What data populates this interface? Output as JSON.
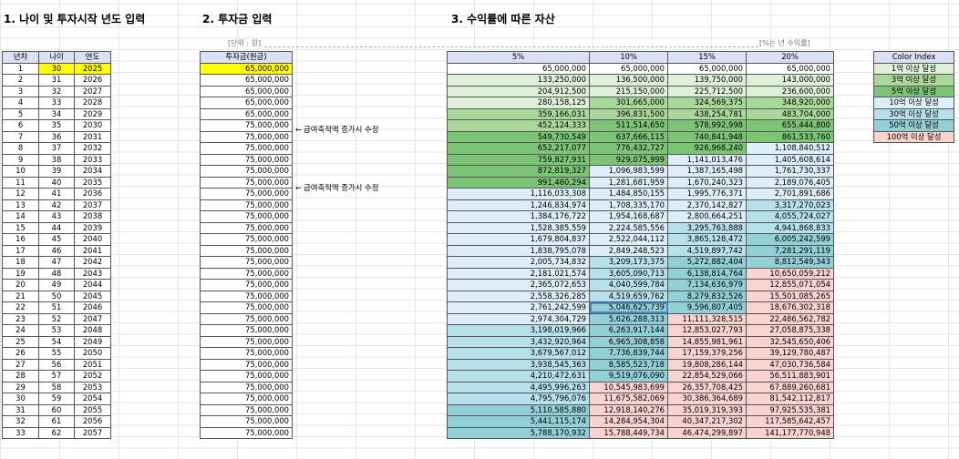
{
  "sections": {
    "s1": "1. 나이 및 투자시작 년도 입력",
    "s2": "2. 투자금 입력",
    "s3": "3. 수익률에 따른 자산"
  },
  "unit_note": "[단위 : 원]",
  "rate_note": "[%는 년 수익률]",
  "t1_headers": [
    "년차",
    "나이",
    "연도"
  ],
  "t2_header": "투자금(원금)",
  "t3_headers": [
    "5%",
    "10%",
    "15%",
    "20%"
  ],
  "memo_text": "급여축적액 증가시 수정",
  "memo_arrow": "←",
  "color_index": {
    "header": "Color Index",
    "items": [
      {
        "label": "1억 이상 달성",
        "color": "#dff0d8"
      },
      {
        "label": "3억 이상 달성",
        "color": "#a9d99a"
      },
      {
        "label": "5억 이상 달성",
        "color": "#7cc576"
      },
      {
        "label": "10억 이상 달성",
        "color": "#ddeef8"
      },
      {
        "label": "30억 이상 달성",
        "color": "#b7e1ea"
      },
      {
        "label": "50억 이상 달성",
        "color": "#92d0d8"
      },
      {
        "label": "100억 이상 달성",
        "color": "#f9d3d0"
      }
    ]
  },
  "rows": [
    {
      "n": "1",
      "age": "30",
      "year": "2025",
      "inv": "65,000,000",
      "v": [
        "65,000,000",
        "65,000,000",
        "65,000,000",
        "65,000,000"
      ]
    },
    {
      "n": "2",
      "age": "31",
      "year": "2026",
      "inv": "65,000,000",
      "v": [
        "133,250,000",
        "136,500,000",
        "139,750,000",
        "143,000,000"
      ]
    },
    {
      "n": "3",
      "age": "32",
      "year": "2027",
      "inv": "65,000,000",
      "v": [
        "204,912,500",
        "215,150,000",
        "225,712,500",
        "236,600,000"
      ]
    },
    {
      "n": "4",
      "age": "33",
      "year": "2028",
      "inv": "65,000,000",
      "v": [
        "280,158,125",
        "301,665,000",
        "324,569,375",
        "348,920,000"
      ]
    },
    {
      "n": "5",
      "age": "34",
      "year": "2029",
      "inv": "65,000,000",
      "v": [
        "359,166,031",
        "396,831,500",
        "438,254,781",
        "483,704,000"
      ]
    },
    {
      "n": "6",
      "age": "35",
      "year": "2030",
      "inv": "75,000,000",
      "v": [
        "452,124,333",
        "511,514,650",
        "578,992,998",
        "655,444,800"
      ]
    },
    {
      "n": "7",
      "age": "36",
      "year": "2031",
      "inv": "75,000,000",
      "v": [
        "549,730,549",
        "637,666,115",
        "740,841,948",
        "861,533,760"
      ]
    },
    {
      "n": "8",
      "age": "37",
      "year": "2032",
      "inv": "75,000,000",
      "v": [
        "652,217,077",
        "776,432,727",
        "926,968,240",
        "1,108,840,512"
      ]
    },
    {
      "n": "9",
      "age": "38",
      "year": "2033",
      "inv": "75,000,000",
      "v": [
        "759,827,931",
        "929,075,999",
        "1,141,013,476",
        "1,405,608,614"
      ]
    },
    {
      "n": "10",
      "age": "39",
      "year": "2034",
      "inv": "75,000,000",
      "v": [
        "872,819,327",
        "1,096,983,599",
        "1,387,165,498",
        "1,761,730,337"
      ]
    },
    {
      "n": "11",
      "age": "40",
      "year": "2035",
      "inv": "75,000,000",
      "v": [
        "991,460,294",
        "1,281,681,959",
        "1,670,240,323",
        "2,189,076,405"
      ]
    },
    {
      "n": "12",
      "age": "41",
      "year": "2036",
      "inv": "75,000,000",
      "v": [
        "1,116,033,308",
        "1,484,850,155",
        "1,995,776,371",
        "2,701,891,686"
      ]
    },
    {
      "n": "13",
      "age": "42",
      "year": "2037",
      "inv": "75,000,000",
      "v": [
        "1,246,834,974",
        "1,708,335,170",
        "2,370,142,827",
        "3,317,270,023"
      ]
    },
    {
      "n": "14",
      "age": "43",
      "year": "2038",
      "inv": "75,000,000",
      "v": [
        "1,384,176,722",
        "1,954,168,687",
        "2,800,664,251",
        "4,055,724,027"
      ]
    },
    {
      "n": "15",
      "age": "44",
      "year": "2039",
      "inv": "75,000,000",
      "v": [
        "1,528,385,559",
        "2,224,585,556",
        "3,295,763,888",
        "4,941,868,833"
      ]
    },
    {
      "n": "16",
      "age": "45",
      "year": "2040",
      "inv": "75,000,000",
      "v": [
        "1,679,804,837",
        "2,522,044,112",
        "3,865,128,472",
        "6,005,242,599"
      ]
    },
    {
      "n": "17",
      "age": "46",
      "year": "2041",
      "inv": "75,000,000",
      "v": [
        "1,838,795,078",
        "2,849,248,523",
        "4,519,897,742",
        "7,281,291,119"
      ]
    },
    {
      "n": "18",
      "age": "47",
      "year": "2042",
      "inv": "75,000,000",
      "v": [
        "2,005,734,832",
        "3,209,173,375",
        "5,272,882,404",
        "8,812,549,343"
      ]
    },
    {
      "n": "19",
      "age": "48",
      "year": "2043",
      "inv": "75,000,000",
      "v": [
        "2,181,021,574",
        "3,605,090,713",
        "6,138,814,764",
        "10,650,059,212"
      ]
    },
    {
      "n": "20",
      "age": "49",
      "year": "2044",
      "inv": "75,000,000",
      "v": [
        "2,365,072,653",
        "4,040,599,784",
        "7,134,636,979",
        "12,855,071,054"
      ]
    },
    {
      "n": "21",
      "age": "50",
      "year": "2045",
      "inv": "75,000,000",
      "v": [
        "2,558,326,285",
        "4,519,659,762",
        "8,279,832,526",
        "15,501,085,265"
      ]
    },
    {
      "n": "22",
      "age": "51",
      "year": "2046",
      "inv": "75,000,000",
      "v": [
        "2,761,242,599",
        "5,046,625,739",
        "9,596,807,405",
        "18,676,302,318"
      ]
    },
    {
      "n": "23",
      "age": "52",
      "year": "2047",
      "inv": "75,000,000",
      "v": [
        "2,974,304,729",
        "5,626,288,313",
        "11,111,328,515",
        "22,486,562,782"
      ]
    },
    {
      "n": "24",
      "age": "53",
      "year": "2048",
      "inv": "75,000,000",
      "v": [
        "3,198,019,966",
        "6,263,917,144",
        "12,853,027,793",
        "27,058,875,338"
      ]
    },
    {
      "n": "25",
      "age": "54",
      "year": "2049",
      "inv": "75,000,000",
      "v": [
        "3,432,920,964",
        "6,965,308,858",
        "14,855,981,961",
        "32,545,650,406"
      ]
    },
    {
      "n": "26",
      "age": "55",
      "year": "2050",
      "inv": "75,000,000",
      "v": [
        "3,679,567,012",
        "7,736,839,744",
        "17,159,379,256",
        "39,129,780,487"
      ]
    },
    {
      "n": "27",
      "age": "56",
      "year": "2051",
      "inv": "75,000,000",
      "v": [
        "3,938,545,363",
        "8,585,523,718",
        "19,808,286,144",
        "47,030,736,584"
      ]
    },
    {
      "n": "28",
      "age": "57",
      "year": "2052",
      "inv": "75,000,000",
      "v": [
        "4,210,472,631",
        "9,519,076,090",
        "22,854,529,066",
        "56,511,883,901"
      ]
    },
    {
      "n": "29",
      "age": "58",
      "year": "2053",
      "inv": "75,000,000",
      "v": [
        "4,495,996,263",
        "10,545,983,699",
        "26,357,708,425",
        "67,889,260,681"
      ]
    },
    {
      "n": "30",
      "age": "59",
      "year": "2054",
      "inv": "75,000,000",
      "v": [
        "4,795,796,076",
        "11,675,582,069",
        "30,386,364,689",
        "81,542,112,817"
      ]
    },
    {
      "n": "31",
      "age": "60",
      "year": "2055",
      "inv": "75,000,000",
      "v": [
        "5,110,585,880",
        "12,918,140,276",
        "35,019,319,393",
        "97,925,535,381"
      ]
    },
    {
      "n": "32",
      "age": "61",
      "year": "2056",
      "inv": "75,000,000",
      "v": [
        "5,441,115,174",
        "14,284,954,304",
        "40,347,217,302",
        "117,585,642,457"
      ]
    },
    {
      "n": "33",
      "age": "62",
      "year": "2057",
      "inv": "75,000,000",
      "v": [
        "5,788,170,932",
        "15,788,449,734",
        "46,474,299,897",
        "141,177,770,948"
      ]
    }
  ]
}
